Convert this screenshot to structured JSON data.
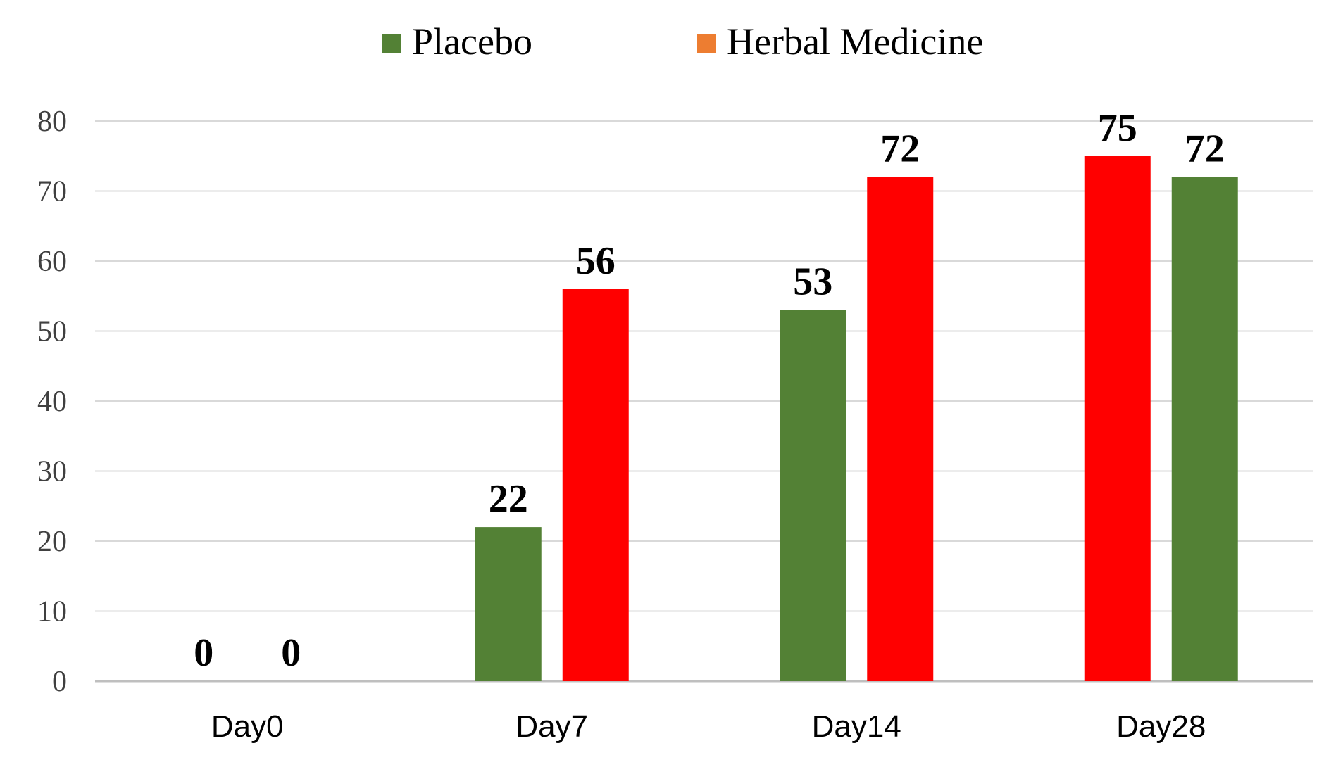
{
  "chart_data": {
    "type": "bar",
    "categories": [
      "Day0",
      "Day7",
      "Day14",
      "Day28"
    ],
    "series": [
      {
        "name": "Placebo",
        "color": "#538135",
        "values": [
          0,
          22,
          53,
          72
        ]
      },
      {
        "name": "Herbal Medicine",
        "color": "#ff0000",
        "legend_color": "#ed7d31",
        "values": [
          0,
          56,
          72,
          75
        ]
      }
    ],
    "bar_order": [
      [
        "Placebo",
        "Herbal Medicine"
      ],
      [
        "Placebo",
        "Herbal Medicine"
      ],
      [
        "Placebo",
        "Herbal Medicine"
      ],
      [
        "Herbal Medicine",
        "Placebo"
      ]
    ],
    "y_ticks": [
      0,
      10,
      20,
      30,
      40,
      50,
      60,
      70,
      80
    ],
    "ylim": [
      0,
      80
    ],
    "title": "",
    "xlabel": "",
    "ylabel": "",
    "grid": true,
    "legend_position": "top",
    "data_labels": true
  }
}
